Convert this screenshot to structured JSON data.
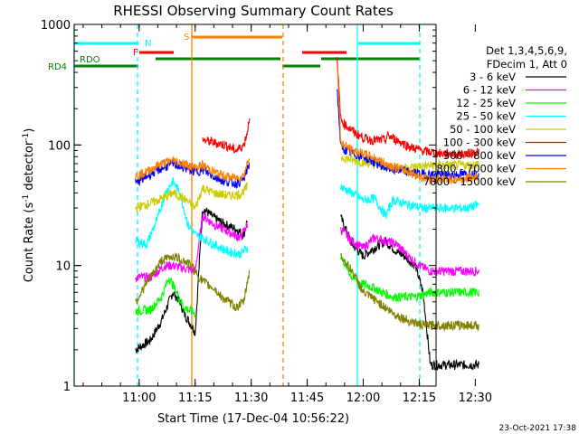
{
  "chart_data": {
    "type": "line",
    "title": "RHESSI Observing Summary Count Rates",
    "xlabel": "Start Time (17-Dec-04 10:56:22)",
    "ylabel": "Count Rate (s^-1 detector^-1)",
    "ylabel_parts": {
      "main": "Count Rate (s",
      "sup1": "-1",
      "mid": " detector",
      "sup2": "-1",
      "end": ")"
    },
    "yscale": "log",
    "ylim": [
      1,
      1000
    ],
    "y_ticks": [
      "1",
      "10",
      "100",
      "1000"
    ],
    "x_range_minutes": [
      -17.4,
      79.5
    ],
    "x_ticks": [
      {
        "label": "11:00",
        "min": 0
      },
      {
        "label": "11:15",
        "min": 15
      },
      {
        "label": "11:30",
        "min": 30
      },
      {
        "label": "11:45",
        "min": 45
      },
      {
        "label": "12:00",
        "min": 60
      },
      {
        "label": "12:15",
        "min": 75
      },
      {
        "label": "12:30",
        "min": 90
      }
    ],
    "legend_header": [
      "Det 1,3,4,5,6,9,",
      "FDecim 1, Att 0"
    ],
    "series": [
      {
        "name": "3 - 6 keV",
        "color": "#000000",
        "pre": [
          [
            -1,
            2
          ],
          [
            3,
            2.4
          ],
          [
            6,
            3.5
          ],
          [
            9,
            6
          ],
          [
            11,
            5
          ],
          [
            12,
            4
          ],
          [
            14,
            3.2
          ],
          [
            15,
            2.8
          ],
          [
            17,
            30
          ],
          [
            20,
            25
          ],
          [
            23,
            22
          ],
          [
            26,
            20
          ],
          [
            28,
            18
          ],
          [
            29,
            24
          ]
        ],
        "post": [
          [
            54,
            25
          ],
          [
            57,
            15
          ],
          [
            60,
            12
          ],
          [
            63,
            14
          ],
          [
            66,
            16
          ],
          [
            69,
            13
          ],
          [
            71,
            12
          ],
          [
            74,
            10
          ],
          [
            76,
            6
          ],
          [
            78,
            1.5
          ],
          [
            81,
            1.5
          ],
          [
            84,
            1.5
          ],
          [
            87,
            1.5
          ],
          [
            89,
            1.5
          ],
          [
            91,
            1.5
          ]
        ]
      },
      {
        "name": "6 - 12 keV",
        "color": "#ff00ff",
        "pre": [
          [
            -1,
            8
          ],
          [
            3,
            8
          ],
          [
            7,
            10
          ],
          [
            9,
            10
          ],
          [
            12,
            9.5
          ],
          [
            15,
            9
          ],
          [
            17,
            26
          ],
          [
            20,
            22
          ],
          [
            24,
            19
          ],
          [
            27,
            17
          ],
          [
            29,
            22
          ]
        ],
        "post": [
          [
            54,
            20
          ],
          [
            57,
            16
          ],
          [
            60,
            14
          ],
          [
            63,
            17
          ],
          [
            66,
            16
          ],
          [
            69,
            15
          ],
          [
            72,
            12
          ],
          [
            75,
            10
          ],
          [
            78,
            9
          ],
          [
            81,
            9
          ],
          [
            85,
            9
          ],
          [
            88,
            9
          ],
          [
            91,
            9
          ]
        ]
      },
      {
        "name": "12 - 25 keV",
        "color": "#00ff00",
        "pre": [
          [
            -1,
            4.2
          ],
          [
            3,
            4.3
          ],
          [
            6,
            5.5
          ],
          [
            8,
            8
          ],
          [
            10,
            6
          ],
          [
            12,
            4.5
          ],
          [
            15,
            4
          ]
        ],
        "post": [
          [
            54,
            12
          ],
          [
            57,
            8
          ],
          [
            60,
            7
          ],
          [
            63,
            6.5
          ],
          [
            65,
            6
          ],
          [
            68,
            5.5
          ],
          [
            71,
            5.5
          ],
          [
            74,
            5.5
          ],
          [
            78,
            6
          ],
          [
            82,
            6
          ],
          [
            86,
            6
          ],
          [
            91,
            6
          ]
        ]
      },
      {
        "name": "25 - 50 keV",
        "color": "#00ffff",
        "pre": [
          [
            -1,
            16
          ],
          [
            2,
            15
          ],
          [
            5,
            25
          ],
          [
            7,
            40
          ],
          [
            9,
            50
          ],
          [
            11,
            40
          ],
          [
            13,
            22
          ],
          [
            15,
            18
          ],
          [
            17,
            17
          ],
          [
            20,
            15
          ],
          [
            24,
            13
          ],
          [
            27,
            12.5
          ],
          [
            29,
            14
          ]
        ],
        "post": [
          [
            54,
            45
          ],
          [
            57,
            40
          ],
          [
            60,
            35
          ],
          [
            63,
            36
          ],
          [
            66,
            26
          ],
          [
            68,
            35
          ],
          [
            72,
            32
          ],
          [
            76,
            30
          ],
          [
            80,
            30
          ],
          [
            84,
            30
          ],
          [
            88,
            30
          ],
          [
            91,
            32
          ]
        ]
      },
      {
        "name": "50 - 100 keV",
        "color": "#cccc00",
        "pre": [
          [
            -1,
            30
          ],
          [
            3,
            33
          ],
          [
            7,
            37
          ],
          [
            9,
            40
          ],
          [
            12,
            36
          ],
          [
            15,
            30
          ],
          [
            17,
            44
          ],
          [
            20,
            40
          ],
          [
            24,
            38
          ],
          [
            27,
            39
          ],
          [
            29,
            45
          ]
        ],
        "post": [
          [
            54,
            80
          ],
          [
            57,
            75
          ],
          [
            60,
            72
          ],
          [
            64,
            68
          ],
          [
            68,
            65
          ],
          [
            72,
            65
          ],
          [
            76,
            67
          ],
          [
            80,
            68
          ],
          [
            84,
            68
          ],
          [
            88,
            68
          ],
          [
            91,
            70
          ]
        ]
      },
      {
        "name": "100 - 300 keV",
        "color": "#ff0000",
        "pre": [
          [
            17,
            110
          ],
          [
            20,
            105
          ],
          [
            23,
            100
          ],
          [
            26,
            90
          ],
          [
            28,
            100
          ],
          [
            29,
            130
          ],
          [
            29.6,
            180
          ]
        ],
        "post": [
          [
            53,
            500
          ],
          [
            54,
            160
          ],
          [
            56,
            140
          ],
          [
            58,
            125
          ],
          [
            60,
            115
          ],
          [
            62,
            110
          ],
          [
            66,
            110
          ],
          [
            66.5,
            120
          ],
          [
            69,
            110
          ],
          [
            73,
            95
          ],
          [
            77,
            88
          ],
          [
            81,
            85
          ],
          [
            85,
            84
          ],
          [
            88,
            85
          ],
          [
            91,
            88
          ]
        ]
      },
      {
        "name": "300 - 800 keV",
        "color": "#0000ff",
        "pre": [
          [
            -1,
            48
          ],
          [
            2,
            55
          ],
          [
            5,
            62
          ],
          [
            9,
            70
          ],
          [
            12,
            65
          ],
          [
            15,
            60
          ],
          [
            17,
            62
          ],
          [
            20,
            55
          ],
          [
            23,
            50
          ],
          [
            26,
            48
          ],
          [
            28,
            52
          ],
          [
            29.5,
            70
          ]
        ],
        "post": [
          [
            53,
            300
          ],
          [
            54,
            95
          ],
          [
            57,
            85
          ],
          [
            60,
            80
          ],
          [
            63,
            72
          ],
          [
            66,
            65
          ],
          [
            69,
            62
          ],
          [
            72,
            60
          ],
          [
            75,
            58
          ],
          [
            78,
            57
          ],
          [
            82,
            56
          ],
          [
            86,
            57
          ],
          [
            91,
            58
          ]
        ]
      },
      {
        "name": "800 - 7000 keV",
        "color": "#ff8000",
        "pre": [
          [
            -1,
            55
          ],
          [
            2,
            60
          ],
          [
            5,
            68
          ],
          [
            9,
            75
          ],
          [
            12,
            70
          ],
          [
            15,
            65
          ],
          [
            17,
            68
          ],
          [
            20,
            60
          ],
          [
            23,
            55
          ],
          [
            26,
            53
          ],
          [
            28,
            56
          ],
          [
            29.5,
            80
          ]
        ],
        "post": [
          [
            53,
            500
          ],
          [
            54,
            105
          ],
          [
            57,
            90
          ],
          [
            60,
            85
          ],
          [
            63,
            78
          ],
          [
            66,
            70
          ],
          [
            69,
            65
          ],
          [
            72,
            60
          ],
          [
            75,
            55
          ],
          [
            78,
            52
          ],
          [
            82,
            52
          ],
          [
            86,
            52
          ],
          [
            91,
            55
          ]
        ]
      },
      {
        "name": "7000 - 15000 keV",
        "color": "#808000",
        "pre": [
          [
            -1,
            5
          ],
          [
            3,
            8
          ],
          [
            6,
            11
          ],
          [
            9,
            12
          ],
          [
            12,
            11
          ],
          [
            14,
            10
          ],
          [
            16,
            8
          ],
          [
            18,
            7
          ],
          [
            20,
            6.5
          ],
          [
            22,
            5.5
          ],
          [
            24,
            5
          ],
          [
            26,
            4.5
          ],
          [
            28,
            5
          ],
          [
            29.5,
            9
          ]
        ],
        "post": [
          [
            54,
            12
          ],
          [
            57,
            9
          ],
          [
            60,
            6
          ],
          [
            64,
            5
          ],
          [
            68,
            4
          ],
          [
            72,
            3.5
          ],
          [
            76,
            3.2
          ],
          [
            80,
            3.2
          ],
          [
            84,
            3.2
          ],
          [
            88,
            3.2
          ],
          [
            91,
            3.2
          ]
        ]
      }
    ],
    "flag_labels": {
      "n": "N",
      "f": "F",
      "s": "S",
      "rdo": "RDO",
      "rd4": "RD4"
    }
  },
  "footer": {
    "date": "23-Oct-2021 17:38"
  }
}
